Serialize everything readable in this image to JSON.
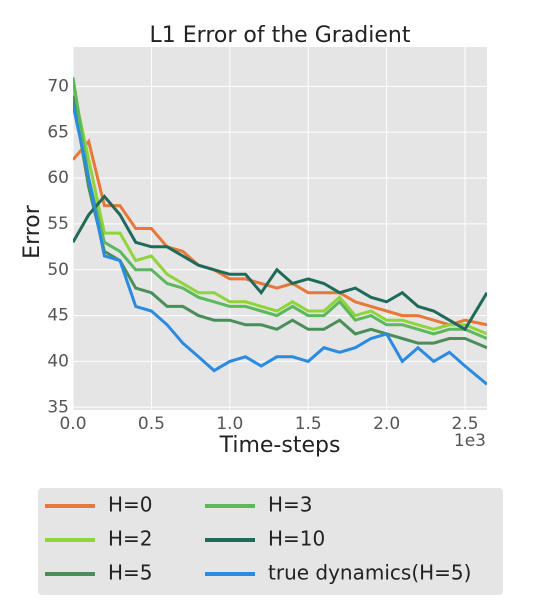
{
  "chart_data": {
    "type": "line",
    "title": "L1 Error of the Gradient",
    "x_label": "Time-steps",
    "y_label": "Error",
    "x_offset_label": "1e3",
    "x": [
      0,
      0.1,
      0.2,
      0.3,
      0.4,
      0.5,
      0.6,
      0.7,
      0.8,
      0.9,
      1.0,
      1.1,
      1.2,
      1.3,
      1.4,
      1.5,
      1.6,
      1.7,
      1.8,
      1.9,
      2.0,
      2.1,
      2.2,
      2.3,
      2.4,
      2.5,
      2.64
    ],
    "xlim": [
      0,
      2.64
    ],
    "xticks": [
      {
        "value": 0,
        "label": "0.0"
      },
      {
        "value": 0.5,
        "label": "0.5"
      },
      {
        "value": 1,
        "label": "1.0"
      },
      {
        "value": 1.5,
        "label": "1.5"
      },
      {
        "value": 2,
        "label": "2.0"
      },
      {
        "value": 2.5,
        "label": "2.5"
      }
    ],
    "ylim": [
      34.7,
      74.3
    ],
    "yticks": [
      35,
      40,
      45,
      50,
      55,
      60,
      65,
      70
    ],
    "grid": true,
    "series": [
      {
        "name": "H=0",
        "color": "#e8773a",
        "values": [
          62,
          64,
          57,
          57,
          54.5,
          54.5,
          52.5,
          52,
          50.5,
          50,
          49,
          49,
          48.5,
          48,
          48.5,
          47.5,
          47.5,
          47.5,
          46.5,
          46,
          45.5,
          45,
          45,
          44.5,
          44,
          44.5,
          44
        ]
      },
      {
        "name": "H=2",
        "color": "#8fd43a",
        "values": [
          70,
          62,
          54,
          54,
          51,
          51.5,
          49.5,
          48.5,
          47.5,
          47.5,
          46.5,
          46.5,
          46,
          45.5,
          46.5,
          45.5,
          45.5,
          47,
          45,
          45.5,
          44.5,
          44.5,
          44,
          43.5,
          44,
          44,
          43
        ]
      },
      {
        "name": "H=5",
        "color": "#4a8f5a",
        "values": [
          69,
          59,
          52,
          51,
          48,
          47.5,
          46,
          46,
          45,
          44.5,
          44.5,
          44,
          44,
          43.5,
          44.5,
          43.5,
          43.5,
          44.5,
          43,
          43.5,
          43,
          42.5,
          42,
          42,
          42.5,
          42.5,
          41.5
        ]
      },
      {
        "name": "H=3",
        "color": "#5cb85c",
        "values": [
          71,
          60,
          53,
          52,
          50,
          50,
          48.5,
          48,
          47,
          46.5,
          46,
          46,
          45.5,
          45,
          46,
          45,
          45,
          46.5,
          44.5,
          45,
          44,
          44,
          43.5,
          43,
          43.5,
          43.5,
          42.5
        ]
      },
      {
        "name": "H=10",
        "color": "#1f6b5a",
        "values": [
          53,
          56,
          58,
          56,
          53,
          52.5,
          52.5,
          51.5,
          50.5,
          50,
          49.5,
          49.5,
          47.5,
          50,
          48.5,
          49,
          48.5,
          47.5,
          48,
          47,
          46.5,
          47.5,
          46,
          45.5,
          44.5,
          43.5,
          47.5
        ]
      },
      {
        "name": "true dynamics(H=5)",
        "color": "#2a8be0",
        "values": [
          68,
          60,
          51.5,
          51,
          46,
          45.5,
          44,
          42,
          40.5,
          39,
          40,
          40.5,
          39.5,
          40.5,
          40.5,
          40,
          41.5,
          41,
          41.5,
          42.5,
          43,
          40,
          41.5,
          40,
          41,
          39.5,
          37.5
        ]
      }
    ]
  }
}
